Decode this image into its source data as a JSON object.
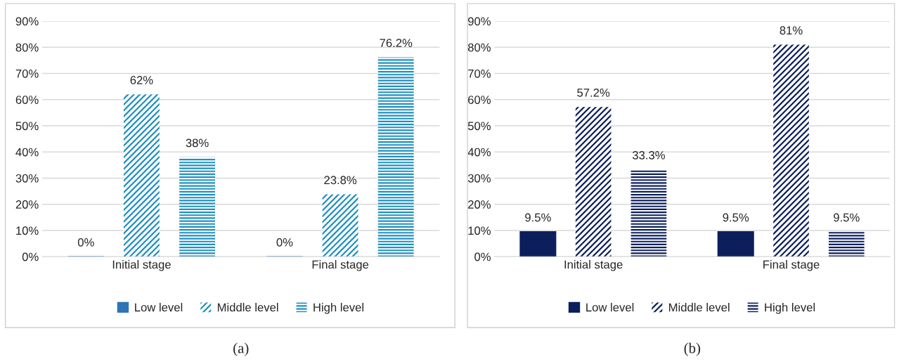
{
  "chart_data": [
    {
      "type": "bar",
      "title": "(a)",
      "categories": [
        "Initial stage",
        "Final stage"
      ],
      "series": [
        {
          "name": "Low level",
          "color": "#2e75b6",
          "values": [
            0,
            0
          ],
          "value_labels": [
            "0%",
            "0%"
          ]
        },
        {
          "name": "Middle level",
          "color": "#1f8fc0",
          "values": [
            62,
            23.8
          ],
          "value_labels": [
            "62%",
            "23.8%"
          ]
        },
        {
          "name": "High level",
          "color": "#1f8fc0",
          "values": [
            38,
            76.2
          ],
          "value_labels": [
            "38%",
            "76.2%"
          ]
        }
      ],
      "ylim": [
        0,
        90
      ],
      "yticks": [
        {
          "value": 0,
          "label": "0%"
        },
        {
          "value": 10,
          "label": "10%"
        },
        {
          "value": 20,
          "label": "20%"
        },
        {
          "value": 30,
          "label": "30%"
        },
        {
          "value": 40,
          "label": "40%"
        },
        {
          "value": 50,
          "label": "50%"
        },
        {
          "value": 60,
          "label": "60%"
        },
        {
          "value": 70,
          "label": "70%"
        },
        {
          "value": 80,
          "label": "80%"
        },
        {
          "value": 90,
          "label": "90%"
        }
      ],
      "grid": "y",
      "legend": "bottom"
    },
    {
      "type": "bar",
      "title": "(b)",
      "categories": [
        "Initial stage",
        "Final stage"
      ],
      "series": [
        {
          "name": "Low level",
          "color": "#0c1f5c",
          "values": [
            9.5,
            9.5
          ],
          "value_labels": [
            "9.5%",
            "9.5%"
          ]
        },
        {
          "name": "Middle level",
          "color": "#0c1f5c",
          "values": [
            57.2,
            81
          ],
          "value_labels": [
            "57.2%",
            "81%"
          ]
        },
        {
          "name": "High level",
          "color": "#0c1f5c",
          "values": [
            33.3,
            9.5
          ],
          "value_labels": [
            "33.3%",
            "9.5%"
          ]
        }
      ],
      "ylim": [
        0,
        90
      ],
      "yticks": [
        {
          "value": 0,
          "label": "0%"
        },
        {
          "value": 10,
          "label": "10%"
        },
        {
          "value": 20,
          "label": "20%"
        },
        {
          "value": 30,
          "label": "30%"
        },
        {
          "value": 40,
          "label": "40%"
        },
        {
          "value": 50,
          "label": "50%"
        },
        {
          "value": 60,
          "label": "60%"
        },
        {
          "value": 70,
          "label": "70%"
        },
        {
          "value": 80,
          "label": "80%"
        },
        {
          "value": 90,
          "label": "90%"
        }
      ],
      "grid": "y",
      "legend": "bottom"
    }
  ]
}
